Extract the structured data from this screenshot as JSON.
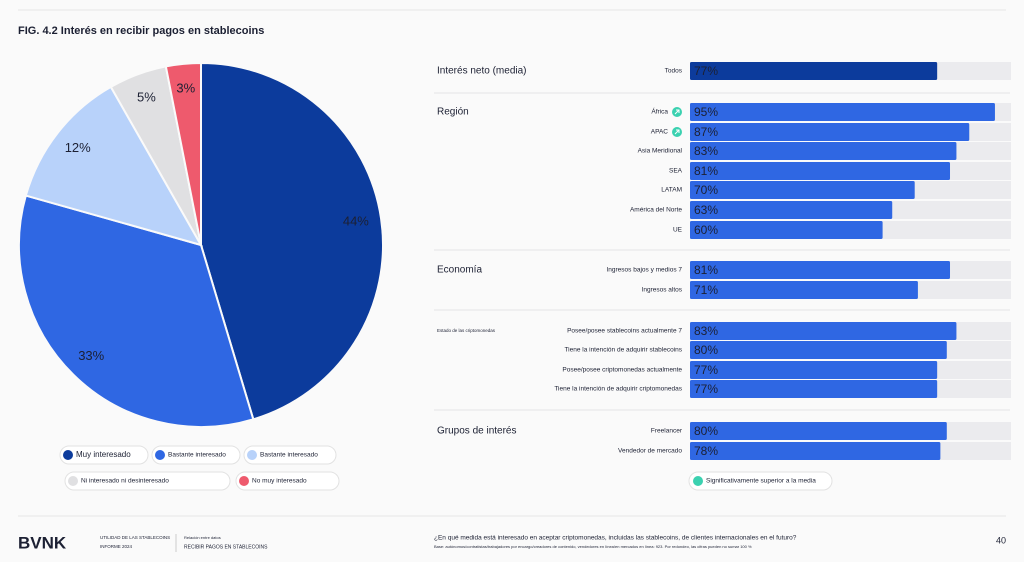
{
  "header": {
    "title": "FIG. 4.2 Interés en recibir pagos en stablecoins"
  },
  "chart_data": [
    {
      "type": "pie",
      "categories": [
        "Muy interesado",
        "Bastante interesado",
        "Bastante interesado",
        "Ni interesado ni desinteresado",
        "No muy interesado"
      ],
      "values": [
        44,
        33,
        12,
        5,
        3
      ],
      "value_labels": [
        "44%",
        "33%",
        "12%",
        "5%",
        "3%"
      ],
      "colors": [
        "#0c3b9c",
        "#2f67e3",
        "#b8d2fa",
        "#e0e0e2",
        "#ee5a6d"
      ]
    },
    {
      "type": "bar",
      "xlim": [
        0,
        100
      ],
      "color": "#2f67e3",
      "highlight_color": "#0c3b9c",
      "track_color": "#ebebee",
      "groups": [
        {
          "name": "Interés neto (media)",
          "categories": [
            "Todos"
          ],
          "values": [
            77
          ],
          "value_labels": [
            "77%"
          ],
          "significant": [
            false
          ]
        },
        {
          "name": "Región",
          "categories": [
            "África",
            "APAC",
            "Asia Meridional",
            "SEA",
            "LATAM",
            "América del Norte",
            "UE"
          ],
          "values": [
            95,
            87,
            83,
            81,
            70,
            63,
            60
          ],
          "value_labels": [
            "95%",
            "87%",
            "83%",
            "81%",
            "70%",
            "63%",
            "60%"
          ],
          "significant": [
            true,
            true,
            false,
            false,
            false,
            false,
            false
          ]
        },
        {
          "name": "Economía",
          "categories": [
            "Ingresos bajos y medios 7",
            "Ingresos altos"
          ],
          "values": [
            81,
            71
          ],
          "value_labels": [
            "81%",
            "71%"
          ],
          "significant": [
            false,
            false
          ]
        },
        {
          "name": "Estado de las criptomonedas",
          "categories": [
            "Posee/posee stablecoins actualmente 7",
            "Tiene la intención de adquirir stablecoins",
            "Posee/posee criptomonedas actualmente",
            "Tiene la intención de adquirir criptomonedas"
          ],
          "values": [
            83,
            80,
            77,
            77
          ],
          "value_labels": [
            "83%",
            "80%",
            "77%",
            "77%"
          ],
          "significant": [
            false,
            false,
            false,
            false
          ]
        },
        {
          "name": "Grupos de interés",
          "categories": [
            "Freelancer",
            "Vendedor de mercado"
          ],
          "values": [
            80,
            78
          ],
          "value_labels": [
            "80%",
            "78%"
          ],
          "significant": [
            false,
            false
          ]
        }
      ],
      "legend": "Significativamente superior a la media"
    }
  ],
  "footer": {
    "brand": "BVNK",
    "report": "UTILIDAD DE LAS STABLECOINS",
    "edition": "INFORME 2024",
    "section_note": "Relación entre datos",
    "section": "RECIBIR PAGOS EN STABLECOINS",
    "question": "¿En qué medida está interesado en aceptar criptomonedas, incluidas las stablecoins, de clientes internacionales en el futuro?",
    "note": "Base: autónomos/contratistas/trabajadores por encargo/creadores de contenido, vendedores en línea/en mercados en línea: 923. Por redondeo, las cifras pueden no sumar 100 %",
    "page": "40"
  }
}
